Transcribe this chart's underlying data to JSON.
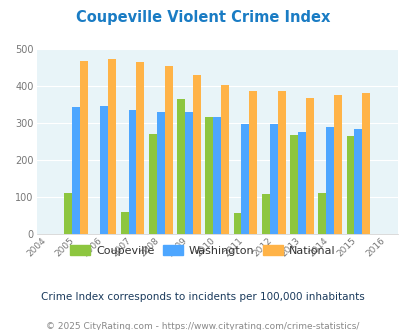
{
  "title": "Coupeville Violent Crime Index",
  "years": [
    2004,
    2005,
    2006,
    2007,
    2008,
    2009,
    2010,
    2011,
    2012,
    2013,
    2014,
    2015,
    2016
  ],
  "coupeville": [
    null,
    113,
    null,
    60,
    272,
    365,
    318,
    58,
    109,
    269,
    111,
    267,
    null
  ],
  "washington": [
    null,
    345,
    348,
    335,
    332,
    332,
    318,
    299,
    299,
    277,
    289,
    284,
    null
  ],
  "national": [
    null,
    469,
    473,
    467,
    455,
    432,
    405,
    387,
    387,
    368,
    376,
    383,
    null
  ],
  "ylim": [
    0,
    500
  ],
  "yticks": [
    0,
    100,
    200,
    300,
    400,
    500
  ],
  "bar_width": 0.28,
  "color_coupeville": "#8dc63f",
  "color_washington": "#4da6ff",
  "color_national": "#ffb347",
  "bg_color": "#e8f4f8",
  "title_color": "#1a7cc4",
  "subtitle": "Crime Index corresponds to incidents per 100,000 inhabitants",
  "footer": "© 2025 CityRating.com - https://www.cityrating.com/crime-statistics/",
  "grid_color": "#ffffff",
  "legend_labels": [
    "Coupeville",
    "Washington",
    "National"
  ],
  "subtitle_color": "#1a3a5c",
  "footer_color": "#888888"
}
